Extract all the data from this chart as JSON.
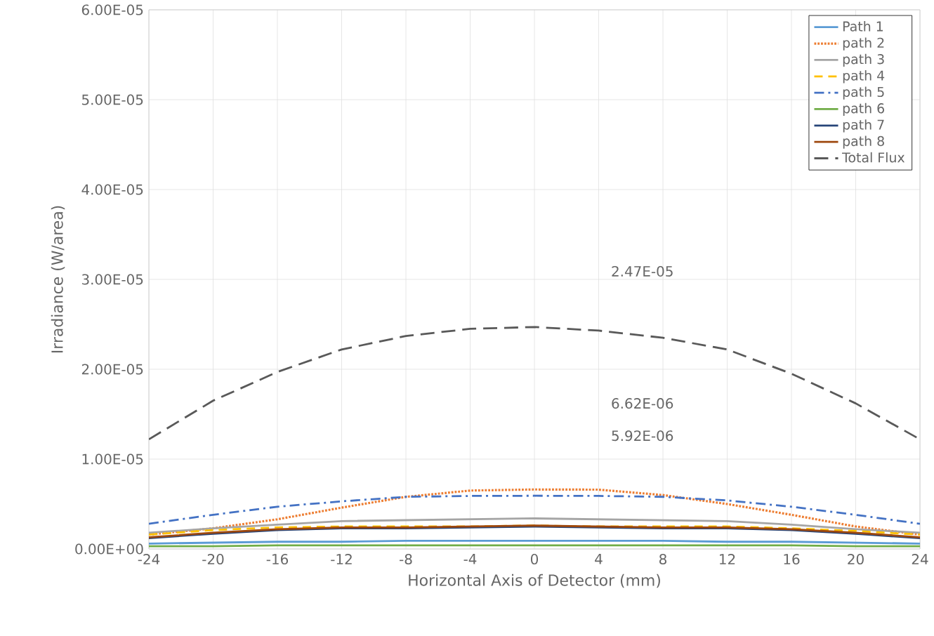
{
  "chart_data": {
    "type": "line",
    "xlabel": "Horizontal Axis of Detector (mm)",
    "ylabel": "Irradiance (W/area)",
    "x": [
      -24,
      -20,
      -16,
      -12,
      -8,
      -4,
      0,
      4,
      8,
      12,
      16,
      20,
      24
    ],
    "xlim": [
      -24,
      24
    ],
    "xticks": [
      -24,
      -20,
      -16,
      -12,
      -8,
      -4,
      0,
      4,
      8,
      12,
      16,
      20,
      24
    ],
    "ylim": [
      0,
      6e-05
    ],
    "yticks": [
      {
        "value": 0,
        "label": "0.00E+00"
      },
      {
        "value": 1e-05,
        "label": "1.00E-05"
      },
      {
        "value": 2e-05,
        "label": "2.00E-05"
      },
      {
        "value": 3e-05,
        "label": "3.00E-05"
      },
      {
        "value": 4e-05,
        "label": "4.00E-05"
      },
      {
        "value": 5e-05,
        "label": "5.00E-05"
      },
      {
        "value": 6e-05,
        "label": "6.00E-05"
      }
    ],
    "grid": true,
    "legend": "top right",
    "marker": "none",
    "series": [
      {
        "name": "Path 1",
        "color": "#5b9bd5",
        "line_style": "solid",
        "values": [
          6e-07,
          7e-07,
          8e-07,
          8e-07,
          9e-07,
          9e-07,
          9e-07,
          9e-07,
          9e-07,
          8e-07,
          8e-07,
          7e-07,
          6e-07
        ]
      },
      {
        "name": "path 2",
        "color": "#ed7d31",
        "line_style": "dotted",
        "values": [
          1.6e-06,
          2.3e-06,
          3.3e-06,
          4.6e-06,
          5.8e-06,
          6.5e-06,
          6.62e-06,
          6.6e-06,
          6e-06,
          5e-06,
          3.8e-06,
          2.5e-06,
          1.6e-06
        ]
      },
      {
        "name": "path 3",
        "color": "#a5a5a5",
        "line_style": "solid",
        "values": [
          1.8e-06,
          2.3e-06,
          2.7e-06,
          3.1e-06,
          3.2e-06,
          3.3e-06,
          3.4e-06,
          3.3e-06,
          3.2e-06,
          3.1e-06,
          2.7e-06,
          2.2e-06,
          1.8e-06
        ]
      },
      {
        "name": "path 4",
        "color": "#ffc000",
        "line_style": "dashed",
        "values": [
          1.6e-06,
          2.1e-06,
          2.4e-06,
          2.5e-06,
          2.5e-06,
          2.5e-06,
          2.6e-06,
          2.5e-06,
          2.5e-06,
          2.5e-06,
          2.3e-06,
          2e-06,
          1.6e-06
        ]
      },
      {
        "name": "path 5",
        "color": "#4472c4",
        "line_style": "dashdot",
        "values": [
          2.8e-06,
          3.8e-06,
          4.7e-06,
          5.3e-06,
          5.8e-06,
          5.9e-06,
          5.92e-06,
          5.9e-06,
          5.8e-06,
          5.4e-06,
          4.7e-06,
          3.8e-06,
          2.8e-06
        ]
      },
      {
        "name": "path 6",
        "color": "#70ad47",
        "line_style": "solid",
        "values": [
          3e-07,
          3e-07,
          4e-07,
          4e-07,
          4e-07,
          4e-07,
          4e-07,
          4e-07,
          4e-07,
          4e-07,
          4e-07,
          3e-07,
          3e-07
        ]
      },
      {
        "name": "path 7",
        "color": "#264478",
        "line_style": "solid",
        "values": [
          1.2e-06,
          1.7e-06,
          2.1e-06,
          2.3e-06,
          2.3e-06,
          2.4e-06,
          2.5e-06,
          2.4e-06,
          2.3e-06,
          2.3e-06,
          2.1e-06,
          1.7e-06,
          1.2e-06
        ]
      },
      {
        "name": "path 8",
        "color": "#9e480e",
        "line_style": "solid",
        "values": [
          1.3e-06,
          1.8e-06,
          2.2e-06,
          2.4e-06,
          2.4e-06,
          2.5e-06,
          2.6e-06,
          2.5e-06,
          2.4e-06,
          2.4e-06,
          2.2e-06,
          1.8e-06,
          1.3e-06
        ]
      },
      {
        "name": "Total Flux",
        "color": "#595959",
        "line_style": "longdashed",
        "values": [
          1.22e-05,
          1.65e-05,
          1.97e-05,
          2.22e-05,
          2.37e-05,
          2.45e-05,
          2.47e-05,
          2.43e-05,
          2.35e-05,
          2.22e-05,
          1.95e-05,
          1.62e-05,
          1.22e-05
        ]
      }
    ],
    "annotations": [
      "2.47E-05",
      "6.62E-06",
      "5.92E-06"
    ]
  }
}
